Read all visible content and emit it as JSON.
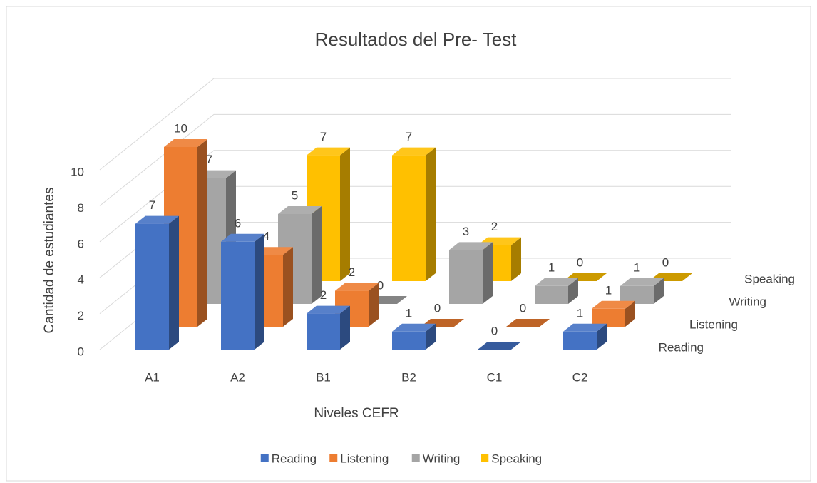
{
  "chart_data": {
    "type": "bar3d",
    "title": "Resultados del Pre- Test",
    "xlabel": "Niveles CEFR",
    "ylabel": "Cantidad de estudiantes",
    "categories": [
      "A1",
      "A2",
      "B1",
      "B2",
      "C1",
      "C2"
    ],
    "series": [
      {
        "name": "Reading",
        "color": "#4472c4",
        "values": [
          7,
          6,
          2,
          1,
          0,
          1
        ]
      },
      {
        "name": "Listening",
        "color": "#ed7d31",
        "values": [
          10,
          4,
          2,
          0,
          0,
          1
        ]
      },
      {
        "name": "Writing",
        "color": "#a5a5a5",
        "values": [
          7,
          5,
          0,
          3,
          1,
          1
        ]
      },
      {
        "name": "Speaking",
        "color": "#ffc000",
        "values": [
          0,
          7,
          7,
          2,
          0,
          0
        ]
      }
    ],
    "ylim": [
      0,
      10
    ],
    "yticks": [
      0,
      2,
      4,
      6,
      8,
      10
    ],
    "grid": true,
    "legend": "bottom"
  }
}
